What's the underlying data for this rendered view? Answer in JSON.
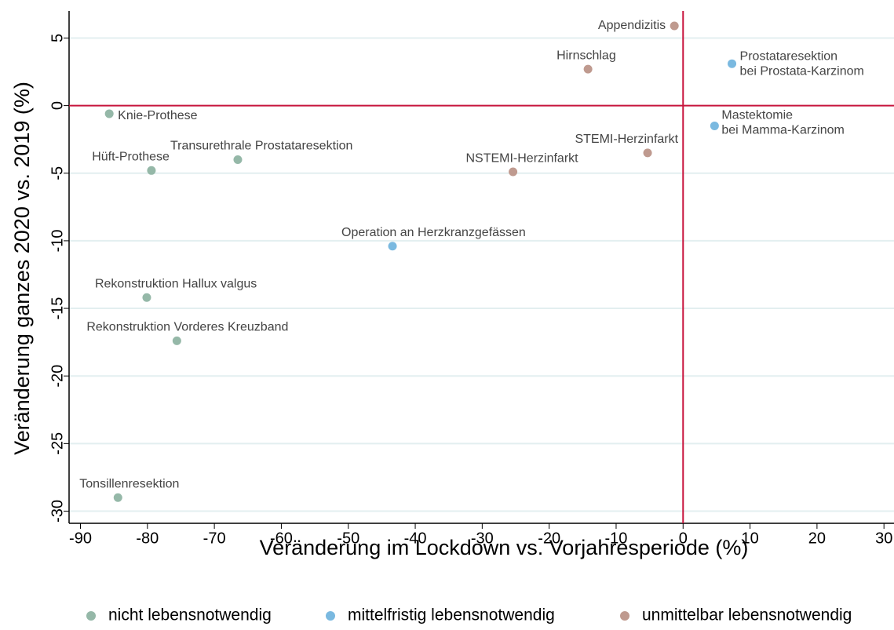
{
  "chart_data": {
    "type": "scatter",
    "x_label": "Veränderung im Lockdown vs. Vorjahresperiode (%)",
    "y_label": "Veränderung ganzes 2020 vs. 2019 (%)",
    "xlim": [
      -91.7,
      31.5
    ],
    "ylim": [
      -30.9,
      7.0
    ],
    "xticks": [
      -90,
      -80,
      -70,
      -60,
      -50,
      -40,
      -30,
      -20,
      -10,
      0,
      10,
      20,
      30
    ],
    "yticks": [
      -30,
      -25,
      -20,
      -15,
      -10,
      -5,
      0,
      5
    ],
    "grid": true,
    "legend": "bottom",
    "reference_lines": {
      "x": 0,
      "y": 0,
      "color": "#c8143c"
    },
    "series": [
      {
        "name": "nicht lebensnotwendig",
        "color": "#95b8a8",
        "x": [
          -85.7,
          -79.4,
          -66.5,
          -80.1,
          -75.6,
          -84.4
        ],
        "values": [
          -0.6,
          -4.8,
          -4.0,
          -14.2,
          -17.4,
          -29.0
        ],
        "labels": [
          [
            "Knie-Prothese"
          ],
          [
            "Hüft-Prothese"
          ],
          [
            "Transurethrale Prostataresektion"
          ],
          [
            "Rekonstruktion Hallux valgus"
          ],
          [
            "Rekonstruktion Vorderes Kreuzband"
          ],
          [
            "Tonsillenresektion"
          ]
        ]
      },
      {
        "name": "mittelfristig lebensnotwendig",
        "color": "#7ab9e0",
        "x": [
          -43.4,
          7.3,
          4.7
        ],
        "values": [
          -10.4,
          3.1,
          -1.5
        ],
        "labels": [
          [
            "Operation an Herzkranzgefässen"
          ],
          [
            "Prostataresektion",
            "bei Prostata-Karzinom"
          ],
          [
            "Mastektomie",
            "bei Mamma-Karzinom"
          ]
        ]
      },
      {
        "name": "unmittelbar lebensnotwendig",
        "color": "#bf9a8f",
        "x": [
          -1.3,
          -14.2,
          -5.3,
          -25.4
        ],
        "values": [
          5.9,
          2.7,
          -3.5,
          -4.9
        ],
        "labels": [
          [
            "Appendizitis"
          ],
          [
            "Hirnschlag"
          ],
          [
            "STEMI-Herzinfarkt"
          ],
          [
            "NSTEMI-Herzinfarkt"
          ]
        ]
      }
    ]
  }
}
